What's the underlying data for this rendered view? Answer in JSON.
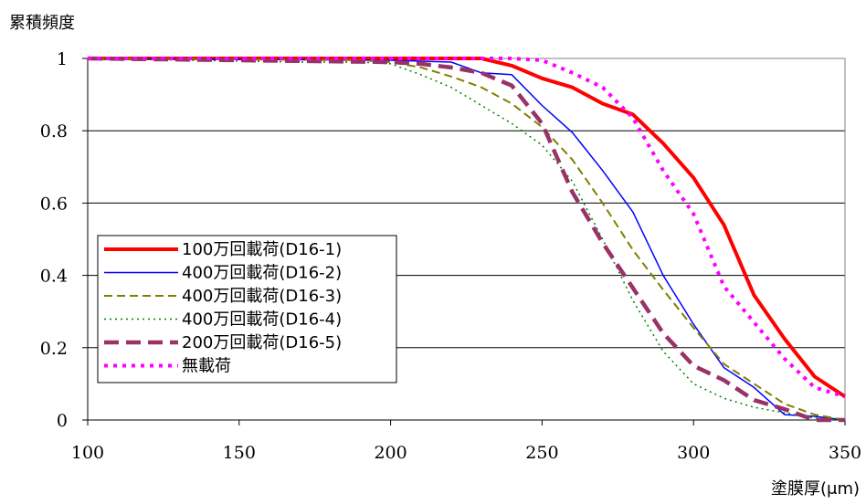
{
  "chart_data": {
    "type": "line",
    "title": "",
    "ylabel": "累積頻度",
    "xlabel": "塗膜厚(μm)",
    "xlim": [
      100,
      350
    ],
    "ylim": [
      0,
      1
    ],
    "x_ticks": [
      "100",
      "150",
      "200",
      "250",
      "300",
      "350"
    ],
    "x_tick_values": [
      100,
      150,
      200,
      250,
      300,
      350
    ],
    "y_ticks": [
      "0",
      "0.2",
      "0.4",
      "0.6",
      "0.8",
      "1"
    ],
    "y_tick_values": [
      0,
      0.2,
      0.4,
      0.6,
      0.8,
      1
    ],
    "grid": "horizontal",
    "legend_position": "bottom-left",
    "series": [
      {
        "name": "100万回載荷(D16-1)",
        "color": "#ff0000",
        "style": "solid-thick",
        "points": [
          [
            100,
            1
          ],
          [
            200,
            1
          ],
          [
            230,
            1
          ],
          [
            240,
            0.98
          ],
          [
            250,
            0.945
          ],
          [
            260,
            0.92
          ],
          [
            270,
            0.875
          ],
          [
            280,
            0.845
          ],
          [
            290,
            0.765
          ],
          [
            300,
            0.67
          ],
          [
            310,
            0.54
          ],
          [
            320,
            0.345
          ],
          [
            330,
            0.225
          ],
          [
            340,
            0.12
          ],
          [
            350,
            0.065
          ]
        ]
      },
      {
        "name": "400万回載荷(D16-2)",
        "color": "#0000ff",
        "style": "solid-thin",
        "points": [
          [
            100,
            1
          ],
          [
            200,
            0.995
          ],
          [
            220,
            0.99
          ],
          [
            230,
            0.96
          ],
          [
            240,
            0.955
          ],
          [
            250,
            0.87
          ],
          [
            260,
            0.795
          ],
          [
            270,
            0.69
          ],
          [
            280,
            0.575
          ],
          [
            290,
            0.4
          ],
          [
            300,
            0.265
          ],
          [
            310,
            0.145
          ],
          [
            320,
            0.09
          ],
          [
            330,
            0.015
          ],
          [
            340,
            0.01
          ],
          [
            350,
            0
          ]
        ]
      },
      {
        "name": "400万回載荷(D16-3)",
        "color": "#808000",
        "style": "dashed",
        "points": [
          [
            100,
            1
          ],
          [
            190,
            0.995
          ],
          [
            200,
            0.99
          ],
          [
            210,
            0.975
          ],
          [
            220,
            0.95
          ],
          [
            230,
            0.92
          ],
          [
            240,
            0.875
          ],
          [
            250,
            0.81
          ],
          [
            260,
            0.72
          ],
          [
            270,
            0.6
          ],
          [
            280,
            0.47
          ],
          [
            290,
            0.36
          ],
          [
            300,
            0.255
          ],
          [
            310,
            0.155
          ],
          [
            320,
            0.1
          ],
          [
            330,
            0.045
          ],
          [
            340,
            0.015
          ],
          [
            350,
            0
          ]
        ]
      },
      {
        "name": "400万回載荷(D16-4)",
        "color": "#008000",
        "style": "dotted",
        "points": [
          [
            100,
            1
          ],
          [
            170,
            0.99
          ],
          [
            190,
            0.99
          ],
          [
            200,
            0.985
          ],
          [
            210,
            0.955
          ],
          [
            220,
            0.92
          ],
          [
            230,
            0.87
          ],
          [
            240,
            0.82
          ],
          [
            250,
            0.76
          ],
          [
            260,
            0.66
          ],
          [
            270,
            0.5
          ],
          [
            280,
            0.33
          ],
          [
            290,
            0.19
          ],
          [
            300,
            0.1
          ],
          [
            310,
            0.06
          ],
          [
            320,
            0.035
          ],
          [
            330,
            0.02
          ],
          [
            340,
            0.005
          ],
          [
            350,
            0
          ]
        ]
      },
      {
        "name": "200万回載荷(D16-5)",
        "color": "#993366",
        "style": "long-dash-thick",
        "points": [
          [
            100,
            1
          ],
          [
            200,
            0.99
          ],
          [
            210,
            0.985
          ],
          [
            220,
            0.975
          ],
          [
            230,
            0.96
          ],
          [
            240,
            0.925
          ],
          [
            250,
            0.82
          ],
          [
            260,
            0.63
          ],
          [
            270,
            0.49
          ],
          [
            280,
            0.365
          ],
          [
            290,
            0.24
          ],
          [
            300,
            0.15
          ],
          [
            310,
            0.11
          ],
          [
            320,
            0.055
          ],
          [
            330,
            0.03
          ],
          [
            340,
            0
          ],
          [
            350,
            0
          ]
        ]
      },
      {
        "name": "無載荷",
        "color": "#ff00ff",
        "style": "dotted-thick",
        "points": [
          [
            100,
            1
          ],
          [
            240,
            1
          ],
          [
            250,
            0.995
          ],
          [
            260,
            0.96
          ],
          [
            270,
            0.92
          ],
          [
            280,
            0.835
          ],
          [
            290,
            0.69
          ],
          [
            300,
            0.57
          ],
          [
            310,
            0.37
          ],
          [
            320,
            0.27
          ],
          [
            330,
            0.17
          ],
          [
            340,
            0.09
          ],
          [
            350,
            0.065
          ]
        ]
      }
    ]
  }
}
